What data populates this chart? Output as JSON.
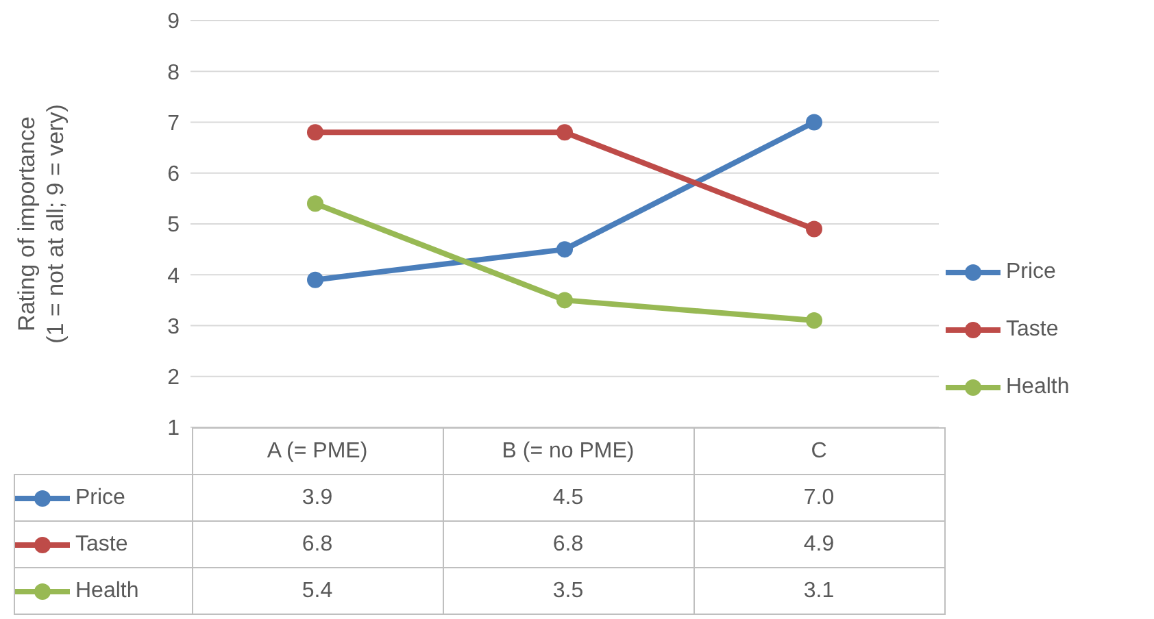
{
  "chart_data": {
    "type": "line",
    "ylabel": "Rating of importance\n(1 = not at all; 9 = very)",
    "categories": [
      "A (= PME)",
      "B (= no PME)",
      "C"
    ],
    "series": [
      {
        "name": "Price",
        "color": "#4a7ebb",
        "values": [
          3.9,
          4.5,
          7.0
        ],
        "value_labels": [
          "3.9",
          "4.5",
          "7.0"
        ]
      },
      {
        "name": "Taste",
        "color": "#be4b48",
        "values": [
          6.8,
          6.8,
          4.9
        ],
        "value_labels": [
          "6.8",
          "6.8",
          "4.9"
        ]
      },
      {
        "name": "Health",
        "color": "#98b954",
        "values": [
          5.4,
          3.5,
          3.1
        ],
        "value_labels": [
          "5.4",
          "3.5",
          "3.1"
        ]
      }
    ],
    "ylim": [
      1,
      9
    ],
    "yticks": [
      1,
      2,
      3,
      4,
      5,
      6,
      7,
      8,
      9
    ],
    "grid": "y",
    "legend": "right",
    "marker": "circle",
    "line_style": "solid"
  }
}
